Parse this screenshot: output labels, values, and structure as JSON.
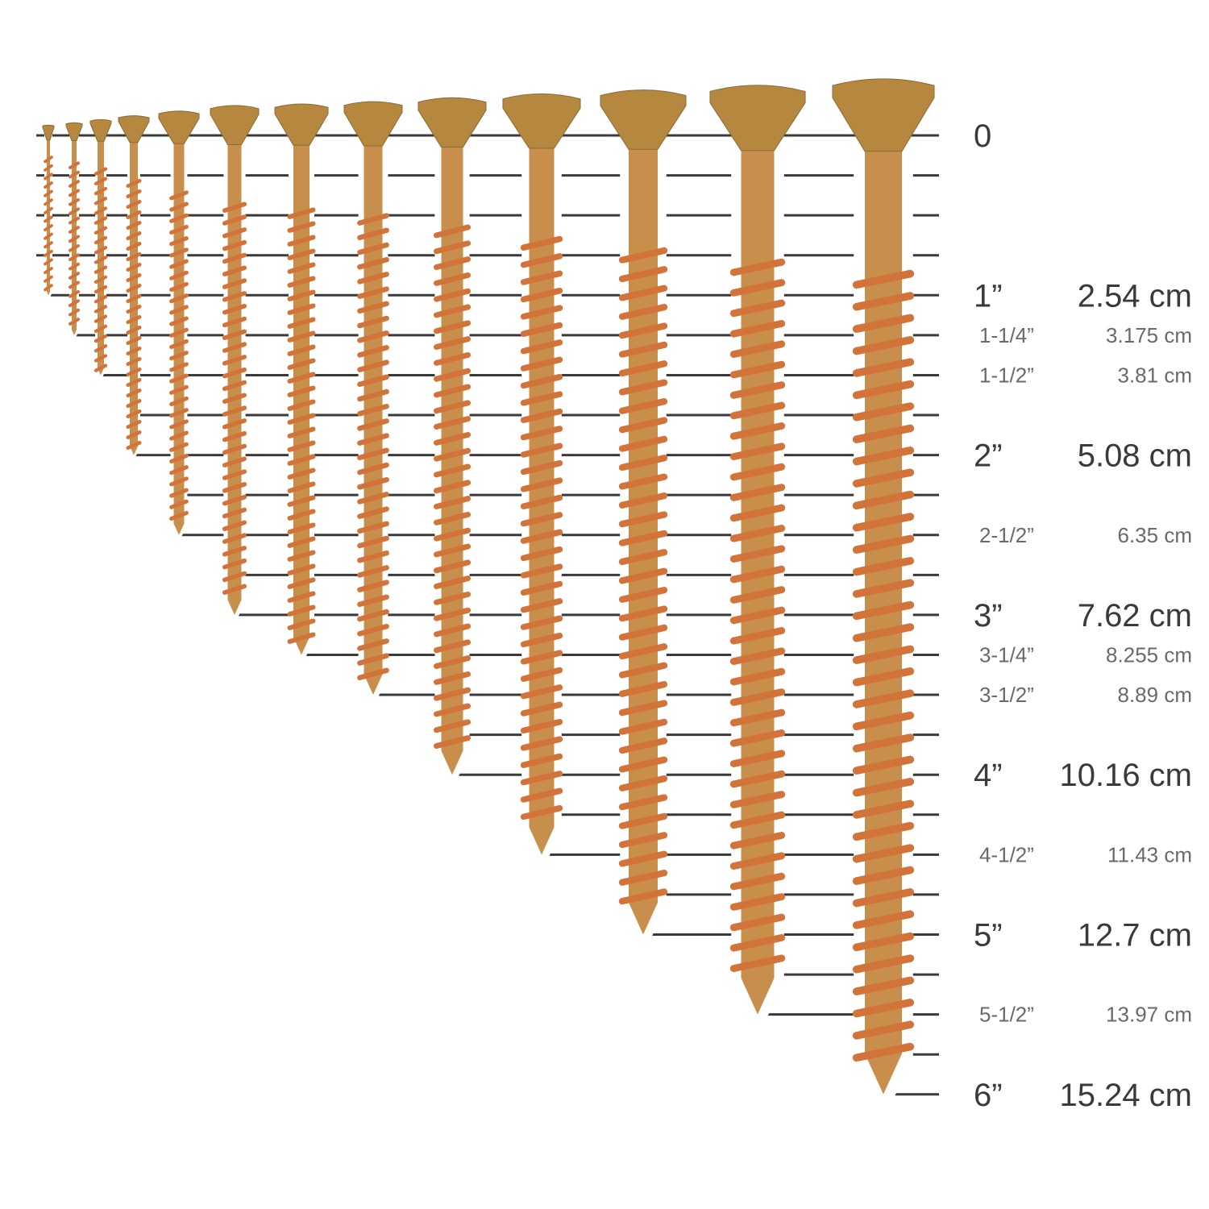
{
  "colors": {
    "ruler_line": "#3a3a3a",
    "major_text": "#3a3a3a",
    "minor_text": "#6a6a6a",
    "screw_head": "#b5873f",
    "screw_shank": "#c88f4c",
    "screw_thread": "#d2743a"
  },
  "ruler": {
    "unit": "inch",
    "min": 0,
    "max": 6,
    "tick_step": 0.25
  },
  "screws": [
    {
      "length_in": 1
    },
    {
      "length_in": 1.25
    },
    {
      "length_in": 1.5
    },
    {
      "length_in": 2
    },
    {
      "length_in": 2.5
    },
    {
      "length_in": 3
    },
    {
      "length_in": 3.25
    },
    {
      "length_in": 3.5
    },
    {
      "length_in": 4
    },
    {
      "length_in": 4.5
    },
    {
      "length_in": 5
    },
    {
      "length_in": 5.5
    },
    {
      "length_in": 6
    }
  ],
  "labels": [
    {
      "value_in": 0,
      "inch": "0",
      "cm": "",
      "major": true
    },
    {
      "value_in": 1,
      "inch": "1”",
      "cm": "2.54 cm",
      "major": true
    },
    {
      "value_in": 1.25,
      "inch": "1-1/4”",
      "cm": "3.175 cm",
      "major": false
    },
    {
      "value_in": 1.5,
      "inch": "1-1/2”",
      "cm": "3.81 cm",
      "major": false
    },
    {
      "value_in": 2,
      "inch": "2”",
      "cm": "5.08 cm",
      "major": true
    },
    {
      "value_in": 2.5,
      "inch": "2-1/2”",
      "cm": "6.35 cm",
      "major": false
    },
    {
      "value_in": 3,
      "inch": "3”",
      "cm": "7.62 cm",
      "major": true
    },
    {
      "value_in": 3.25,
      "inch": "3-1/4”",
      "cm": "8.255 cm",
      "major": false
    },
    {
      "value_in": 3.5,
      "inch": "3-1/2”",
      "cm": "8.89 cm",
      "major": false
    },
    {
      "value_in": 4,
      "inch": "4”",
      "cm": "10.16 cm",
      "major": true
    },
    {
      "value_in": 4.5,
      "inch": "4-1/2”",
      "cm": "11.43 cm",
      "major": false
    },
    {
      "value_in": 5,
      "inch": "5”",
      "cm": "12.7 cm",
      "major": true
    },
    {
      "value_in": 5.5,
      "inch": "5-1/2”",
      "cm": "13.97 cm",
      "major": false
    },
    {
      "value_in": 6,
      "inch": "6”",
      "cm": "15.24 cm",
      "major": true
    }
  ]
}
